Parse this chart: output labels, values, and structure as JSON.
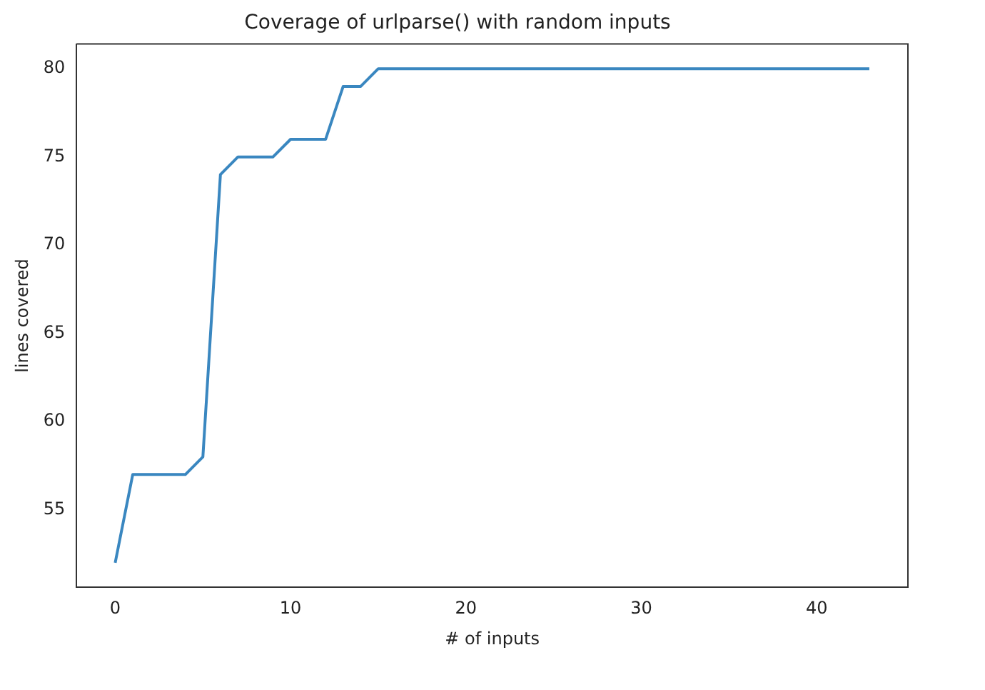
{
  "chart_data": {
    "type": "line",
    "title": "Coverage of urlparse() with random inputs",
    "xlabel": "# of inputs",
    "ylabel": "lines covered",
    "x": [
      0,
      1,
      2,
      3,
      4,
      5,
      6,
      7,
      8,
      9,
      10,
      11,
      12,
      13,
      14,
      15,
      16,
      17,
      18,
      19,
      20,
      21,
      22,
      23,
      24,
      25,
      26,
      27,
      28,
      29,
      30,
      31,
      32,
      33,
      34,
      35,
      36,
      37,
      38,
      39,
      40,
      41,
      42,
      43
    ],
    "series": [
      {
        "color": "#3a87c0",
        "values": [
          52,
          57,
          57,
          57,
          57,
          58,
          74,
          75,
          75,
          75,
          76,
          76,
          76,
          79,
          79,
          80,
          80,
          80,
          80,
          80,
          80,
          80,
          80,
          80,
          80,
          80,
          80,
          80,
          80,
          80,
          80,
          80,
          80,
          80,
          80,
          80,
          80,
          80,
          80,
          80,
          80,
          80,
          80,
          80
        ]
      }
    ],
    "xlim": [
      -2.2,
      45.2
    ],
    "ylim": [
      50.6,
      81.4
    ],
    "xticks": [
      0,
      10,
      20,
      30,
      40
    ],
    "yticks": [
      55,
      60,
      65,
      70,
      75,
      80
    ],
    "grid": false,
    "legend": false,
    "marker": "none",
    "line_style": "solid"
  }
}
